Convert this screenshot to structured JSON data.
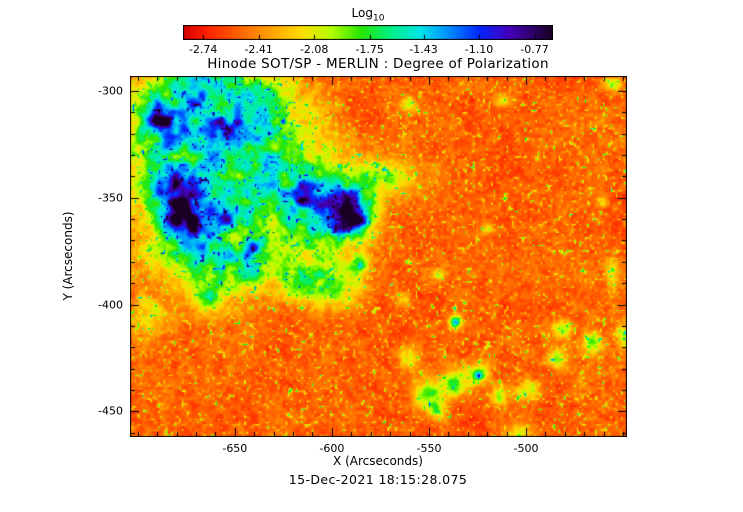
{
  "page": {
    "background": "#ffffff"
  },
  "chart_data": {
    "type": "heatmap",
    "title": "Hinode SOT/SP - MERLIN : Degree of Polarization",
    "xlabel": "X (Arcseconds)",
    "ylabel": "Y (Arcseconds)",
    "timestamp": "15-Dec-2021 18:15:28.075",
    "x_range": [
      -704,
      -448
    ],
    "y_range": [
      -462,
      -293
    ],
    "x_tick_labels": [
      "-650",
      "-600",
      "-550",
      "-500"
    ],
    "y_tick_labels": [
      "-300",
      "-350",
      "-400",
      "-450"
    ],
    "major_tick_step": 50,
    "minor_tick_step": 10,
    "grid": false,
    "colorbar": {
      "label": "Log",
      "label_sub": "10",
      "tick_labels": [
        "-2.74",
        "-2.41",
        "-2.08",
        "-1.75",
        "-1.43",
        "-1.10",
        "-0.77"
      ],
      "range": [
        -2.86,
        -0.66
      ],
      "orientation": "horizontal",
      "position": "top"
    },
    "colormap_stops": [
      [
        0.0,
        210,
        0,
        0
      ],
      [
        0.06,
        255,
        30,
        0
      ],
      [
        0.14,
        255,
        90,
        0
      ],
      [
        0.22,
        255,
        150,
        0
      ],
      [
        0.32,
        255,
        220,
        0
      ],
      [
        0.4,
        180,
        255,
        0
      ],
      [
        0.48,
        40,
        230,
        0
      ],
      [
        0.56,
        0,
        240,
        130
      ],
      [
        0.64,
        0,
        230,
        230
      ],
      [
        0.72,
        0,
        140,
        255
      ],
      [
        0.8,
        0,
        40,
        255
      ],
      [
        0.88,
        70,
        0,
        190
      ],
      [
        1.0,
        25,
        0,
        35
      ]
    ],
    "background_field": {
      "base": 0.05,
      "noise_amp": 0.19,
      "speckle_amp": 0.5
    },
    "features": [
      [
        0.1,
        0.15,
        0.11,
        0.13,
        0.4
      ],
      [
        0.25,
        0.12,
        0.12,
        0.1,
        0.36
      ],
      [
        0.16,
        0.02,
        0.12,
        0.07,
        0.3
      ],
      [
        0.13,
        0.38,
        0.12,
        0.16,
        0.4
      ],
      [
        0.3,
        0.3,
        0.1,
        0.12,
        0.36
      ],
      [
        0.4,
        0.38,
        0.08,
        0.11,
        0.33
      ],
      [
        0.22,
        0.52,
        0.1,
        0.09,
        0.3
      ],
      [
        0.35,
        0.56,
        0.06,
        0.07,
        0.24
      ],
      [
        0.52,
        0.28,
        0.06,
        0.05,
        0.22
      ],
      [
        0.42,
        0.58,
        0.05,
        0.06,
        0.22
      ],
      [
        0.04,
        0.66,
        0.035,
        0.05,
        0.2
      ],
      [
        0.16,
        0.62,
        0.03,
        0.04,
        0.18
      ],
      [
        0.111,
        0.385,
        0.048,
        0.075,
        0.55
      ],
      [
        0.085,
        0.3,
        0.03,
        0.045,
        0.4
      ],
      [
        0.056,
        0.12,
        0.035,
        0.055,
        0.42
      ],
      [
        0.2,
        0.15,
        0.028,
        0.038,
        0.38
      ],
      [
        0.433,
        0.375,
        0.05,
        0.07,
        0.55
      ],
      [
        0.45,
        0.4,
        0.022,
        0.03,
        0.3
      ],
      [
        0.346,
        0.33,
        0.022,
        0.03,
        0.42
      ],
      [
        0.247,
        0.47,
        0.018,
        0.028,
        0.36
      ],
      [
        0.19,
        0.39,
        0.02,
        0.03,
        0.33
      ],
      [
        0.655,
        0.68,
        0.013,
        0.018,
        0.42
      ],
      [
        0.46,
        0.52,
        0.02,
        0.028,
        0.25
      ],
      [
        0.6,
        0.88,
        0.03,
        0.04,
        0.28
      ],
      [
        0.655,
        0.85,
        0.025,
        0.035,
        0.3
      ],
      [
        0.7,
        0.82,
        0.025,
        0.03,
        0.28
      ],
      [
        0.745,
        0.885,
        0.02,
        0.03,
        0.25
      ],
      [
        0.8,
        0.87,
        0.025,
        0.03,
        0.27
      ],
      [
        0.86,
        0.78,
        0.02,
        0.03,
        0.25
      ],
      [
        0.87,
        0.7,
        0.018,
        0.025,
        0.23
      ],
      [
        0.93,
        0.74,
        0.02,
        0.03,
        0.25
      ],
      [
        0.62,
        0.93,
        0.02,
        0.03,
        0.24
      ],
      [
        0.56,
        0.78,
        0.02,
        0.03,
        0.22
      ],
      [
        0.7,
        0.828,
        0.01,
        0.012,
        0.3
      ],
      [
        0.72,
        0.42,
        0.012,
        0.015,
        0.2
      ],
      [
        0.62,
        0.55,
        0.012,
        0.015,
        0.2
      ],
      [
        0.55,
        0.62,
        0.015,
        0.02,
        0.22
      ],
      [
        0.75,
        0.07,
        0.015,
        0.02,
        0.18
      ],
      [
        0.56,
        0.08,
        0.02,
        0.025,
        0.2
      ],
      [
        0.97,
        0.55,
        0.015,
        0.04,
        0.22
      ],
      [
        0.95,
        0.35,
        0.01,
        0.015,
        0.18
      ],
      [
        0.78,
        0.99,
        0.03,
        0.03,
        0.24
      ],
      [
        0.99,
        0.72,
        0.015,
        0.03,
        0.2
      ],
      [
        0.97,
        0.02,
        0.02,
        0.02,
        0.18
      ]
    ]
  }
}
